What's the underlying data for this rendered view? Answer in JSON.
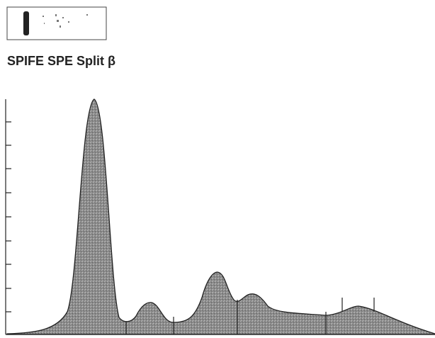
{
  "figure": {
    "title": "SPIFE SPE Split β"
  }
}
